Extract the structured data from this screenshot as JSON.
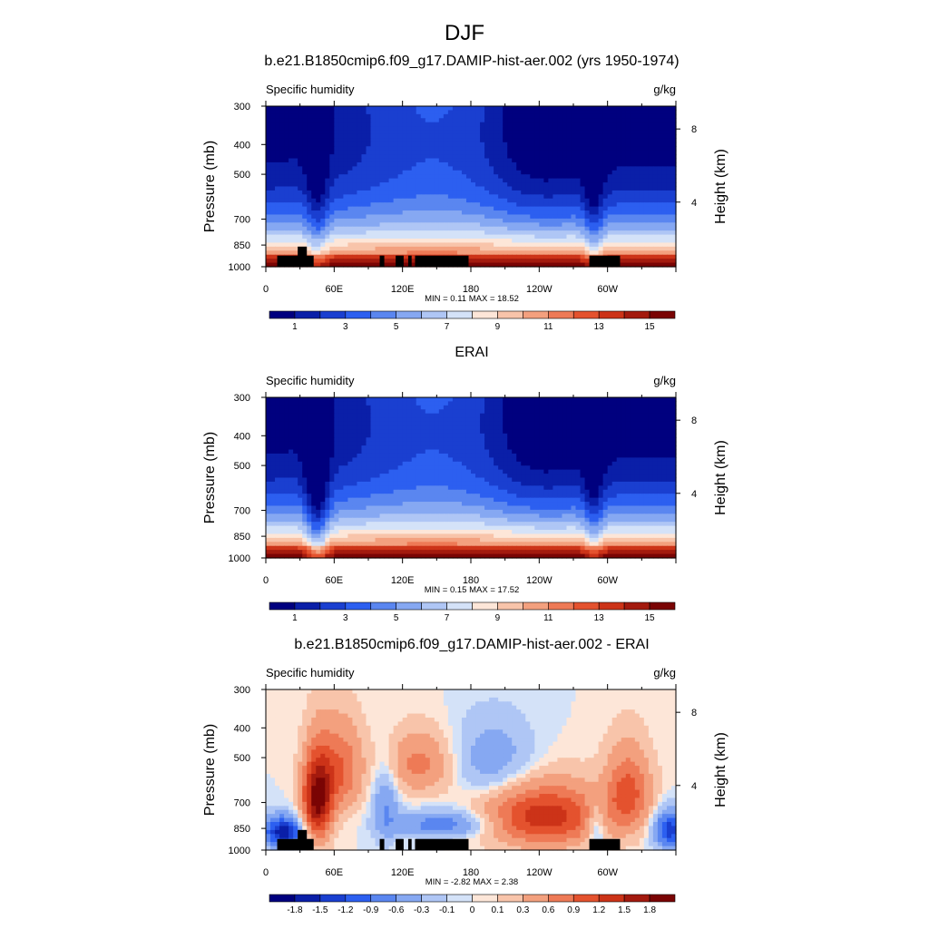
{
  "figure": {
    "title": "DJF"
  },
  "colors": {
    "background": "#ffffff",
    "terrain": "#000000"
  },
  "chart_data": [
    {
      "type": "heatmap",
      "id": "model",
      "title": "b.e21.B1850cmip6.f09_g17.DAMIP-hist-aer.002 (yrs 1950-1974)",
      "left_label": "Specific humidity",
      "right_label": "g/kg",
      "ylabel": "Pressure (mb)",
      "y2label": "Height (km)",
      "x_ticks": [
        "0",
        "60E",
        "120E",
        "180",
        "120W",
        "60W"
      ],
      "x_tick_values": [
        0,
        60,
        120,
        180,
        240,
        300
      ],
      "xlim": [
        0,
        360
      ],
      "y_ticks": [
        "300",
        "400",
        "500",
        "700",
        "850",
        "1000"
      ],
      "y_tick_values": [
        300,
        400,
        500,
        700,
        850,
        1000
      ],
      "ylim": [
        300,
        1000
      ],
      "y2_ticks": [
        "8",
        "4"
      ],
      "y2_tick_values": [
        8,
        4
      ],
      "stats": "MIN =   0.11  MAX =  18.52",
      "min": 0.11,
      "max": 18.52,
      "colorbar_labels": [
        "1",
        "3",
        "5",
        "7",
        "9",
        "11",
        "13",
        "15"
      ],
      "colorbar_levels": 16,
      "terrain_blocks": [
        {
          "lon0": 10,
          "lon1": 42,
          "p_top": 920
        },
        {
          "lon0": 28,
          "lon1": 36,
          "p_top": 860
        },
        {
          "lon0": 100,
          "lon1": 104,
          "p_top": 920
        },
        {
          "lon0": 114,
          "lon1": 121,
          "p_top": 920
        },
        {
          "lon0": 125,
          "lon1": 128,
          "p_top": 920
        },
        {
          "lon0": 131,
          "lon1": 178,
          "p_top": 920
        },
        {
          "lon0": 284,
          "lon1": 311,
          "p_top": 920
        }
      ]
    },
    {
      "type": "heatmap",
      "id": "obs",
      "title": "ERAI",
      "left_label": "Specific humidity",
      "right_label": "g/kg",
      "ylabel": "Pressure (mb)",
      "y2label": "Height (km)",
      "x_ticks": [
        "0",
        "60E",
        "120E",
        "180",
        "120W",
        "60W"
      ],
      "x_tick_values": [
        0,
        60,
        120,
        180,
        240,
        300
      ],
      "xlim": [
        0,
        360
      ],
      "y_ticks": [
        "300",
        "400",
        "500",
        "700",
        "850",
        "1000"
      ],
      "y_tick_values": [
        300,
        400,
        500,
        700,
        850,
        1000
      ],
      "ylim": [
        300,
        1000
      ],
      "y2_ticks": [
        "8",
        "4"
      ],
      "y2_tick_values": [
        8,
        4
      ],
      "stats": "MIN =   0.15  MAX =  17.52",
      "min": 0.15,
      "max": 17.52,
      "colorbar_labels": [
        "1",
        "3",
        "5",
        "7",
        "9",
        "11",
        "13",
        "15"
      ],
      "colorbar_levels": 16,
      "terrain_blocks": []
    },
    {
      "type": "heatmap",
      "id": "diff",
      "title": "b.e21.B1850cmip6.f09_g17.DAMIP-hist-aer.002 - ERAI",
      "left_label": "Specific humidity",
      "right_label": "g/kg",
      "ylabel": "Pressure (mb)",
      "y2label": "Height (km)",
      "x_ticks": [
        "0",
        "60E",
        "120E",
        "180",
        "120W",
        "60W"
      ],
      "x_tick_values": [
        0,
        60,
        120,
        180,
        240,
        300
      ],
      "xlim": [
        0,
        360
      ],
      "y_ticks": [
        "300",
        "400",
        "500",
        "700",
        "850",
        "1000"
      ],
      "y_tick_values": [
        300,
        400,
        500,
        700,
        850,
        1000
      ],
      "ylim": [
        300,
        1000
      ],
      "y2_ticks": [
        "8",
        "4"
      ],
      "y2_tick_values": [
        8,
        4
      ],
      "stats": "MIN =  -2.82  MAX =   2.38",
      "min": -2.82,
      "max": 2.38,
      "colorbar_labels": [
        "-1.8",
        "-1.5",
        "-1.2",
        "-0.9",
        "-0.6",
        "-0.3",
        "-0.1",
        "0",
        "0.1",
        "0.3",
        "0.6",
        "0.9",
        "1.2",
        "1.5",
        "1.8"
      ],
      "colorbar_levels": 16,
      "terrain_blocks": [
        {
          "lon0": 10,
          "lon1": 42,
          "p_top": 920
        },
        {
          "lon0": 28,
          "lon1": 36,
          "p_top": 860
        },
        {
          "lon0": 100,
          "lon1": 104,
          "p_top": 920
        },
        {
          "lon0": 114,
          "lon1": 121,
          "p_top": 920
        },
        {
          "lon0": 125,
          "lon1": 128,
          "p_top": 920
        },
        {
          "lon0": 131,
          "lon1": 178,
          "p_top": 920
        },
        {
          "lon0": 284,
          "lon1": 311,
          "p_top": 920
        }
      ]
    }
  ],
  "colormap": [
    "#00007f",
    "#0a1fa8",
    "#1a3fd0",
    "#2c5ff0",
    "#5a86f0",
    "#86a8f2",
    "#afc6f5",
    "#d4e2f8",
    "#fde6d8",
    "#f8c4aa",
    "#f3a07e",
    "#ee7a56",
    "#e4522e",
    "#cc3318",
    "#a31a0e",
    "#7a0404"
  ]
}
